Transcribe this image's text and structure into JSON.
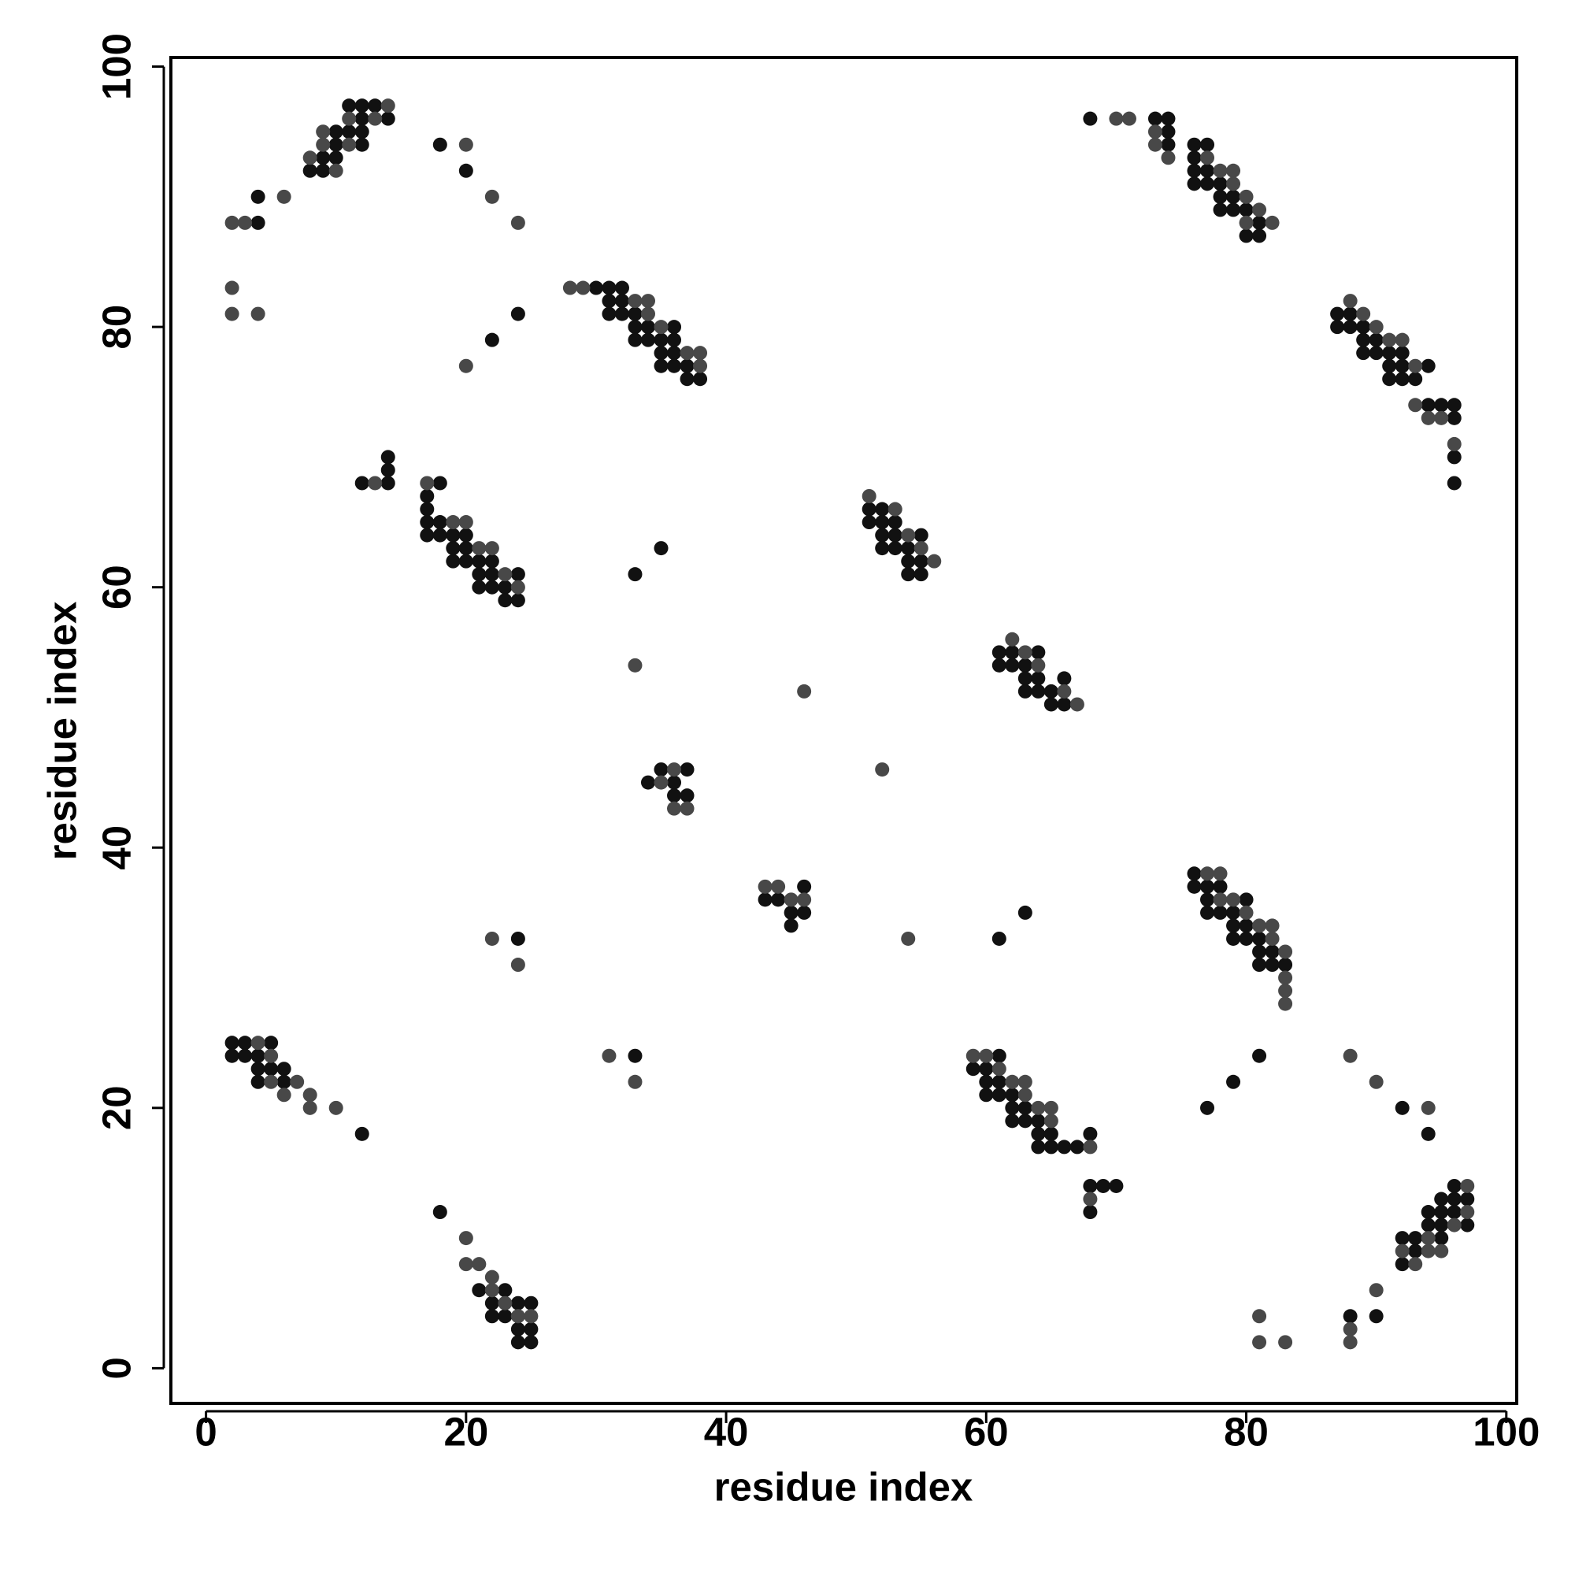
{
  "chart_data": {
    "type": "scatter",
    "x_label": "residue index",
    "y_label": "residue index",
    "xlim": [
      -2.7,
      100.8
    ],
    "ylim": [
      -2.7,
      100.7
    ],
    "xticks": [
      0,
      20,
      40,
      60,
      80,
      100
    ],
    "yticks": [
      0,
      20,
      40,
      60,
      80,
      100
    ],
    "grid": false,
    "series": [
      {
        "color": "#111111",
        "x": [
          11,
          12,
          13,
          12,
          14,
          10,
          11,
          12,
          10,
          12,
          18,
          9,
          10,
          8,
          9,
          20,
          4,
          4,
          24,
          22,
          30,
          31,
          32,
          31,
          32,
          31,
          32,
          33,
          33,
          34,
          36,
          33,
          34,
          35,
          36,
          35,
          36,
          35,
          36,
          37,
          37,
          38,
          68,
          73,
          74,
          74,
          74,
          76,
          77,
          76,
          76,
          77,
          76,
          77,
          78,
          78,
          79,
          78,
          79,
          80,
          81,
          80,
          81,
          87,
          88,
          87,
          88,
          89,
          89,
          90,
          89,
          90,
          91,
          92,
          91,
          92,
          94,
          91,
          92,
          93,
          94,
          95,
          96,
          96,
          96,
          96,
          14,
          14,
          12,
          14,
          18,
          17,
          17,
          17,
          18,
          17,
          18,
          19,
          20,
          19,
          20,
          19,
          20,
          21,
          22,
          21,
          22,
          24,
          21,
          22,
          23,
          23,
          24,
          33,
          35,
          51,
          52,
          51,
          52,
          53,
          52,
          53,
          55,
          52,
          53,
          54,
          54,
          55,
          54,
          55,
          61,
          62,
          64,
          61,
          62,
          63,
          63,
          64,
          66,
          63,
          64,
          65,
          65,
          66,
          35,
          37,
          34,
          36,
          36,
          37,
          46,
          43,
          44,
          45,
          46,
          45,
          61,
          63,
          76,
          76,
          77,
          78,
          77,
          80,
          77,
          78,
          79,
          79,
          80,
          79,
          80,
          81,
          81,
          82,
          81,
          82,
          83,
          24,
          2,
          3,
          5,
          2,
          3,
          4,
          4,
          5,
          6,
          4,
          6,
          12,
          33,
          61,
          59,
          60,
          60,
          61,
          60,
          61,
          62,
          62,
          63,
          62,
          63,
          64,
          64,
          65,
          68,
          64,
          65,
          66,
          67,
          68,
          69,
          70,
          68,
          81,
          79,
          77,
          92,
          94,
          18,
          21,
          23,
          22,
          24,
          25,
          22,
          23,
          24,
          25,
          24,
          25,
          96,
          95,
          96,
          97,
          94,
          95,
          96,
          94,
          95,
          97,
          92,
          93,
          95,
          93,
          92,
          88,
          90
        ],
        "y": [
          97,
          97,
          97,
          96,
          96,
          95,
          95,
          95,
          94,
          94,
          94,
          93,
          93,
          92,
          92,
          92,
          90,
          88,
          81,
          79,
          83,
          83,
          83,
          82,
          82,
          81,
          81,
          81,
          80,
          80,
          80,
          79,
          79,
          79,
          79,
          78,
          78,
          77,
          77,
          77,
          76,
          76,
          96,
          96,
          96,
          95,
          94,
          94,
          94,
          93,
          92,
          92,
          91,
          91,
          91,
          90,
          90,
          89,
          89,
          89,
          88,
          87,
          87,
          81,
          81,
          80,
          80,
          80,
          79,
          79,
          78,
          78,
          78,
          78,
          77,
          77,
          77,
          76,
          76,
          76,
          74,
          74,
          74,
          73,
          70,
          68,
          70,
          69,
          68,
          68,
          68,
          67,
          66,
          65,
          65,
          64,
          64,
          64,
          64,
          63,
          63,
          62,
          62,
          62,
          62,
          61,
          61,
          61,
          60,
          60,
          60,
          59,
          59,
          61,
          63,
          66,
          66,
          65,
          65,
          65,
          64,
          64,
          64,
          63,
          63,
          63,
          62,
          62,
          61,
          61,
          55,
          55,
          55,
          54,
          54,
          54,
          53,
          53,
          53,
          52,
          52,
          52,
          51,
          51,
          46,
          46,
          45,
          45,
          44,
          44,
          37,
          36,
          36,
          35,
          35,
          34,
          33,
          35,
          38,
          37,
          37,
          37,
          36,
          36,
          35,
          35,
          35,
          34,
          34,
          33,
          33,
          33,
          32,
          32,
          31,
          31,
          31,
          33,
          25,
          25,
          25,
          24,
          24,
          24,
          23,
          23,
          23,
          22,
          22,
          18,
          24,
          24,
          23,
          23,
          22,
          22,
          21,
          21,
          21,
          20,
          20,
          19,
          19,
          19,
          18,
          18,
          18,
          17,
          17,
          17,
          17,
          14,
          14,
          14,
          12,
          24,
          22,
          20,
          20,
          18,
          12,
          6,
          6,
          5,
          5,
          5,
          4,
          4,
          3,
          3,
          2,
          2,
          14,
          13,
          13,
          13,
          12,
          12,
          12,
          11,
          11,
          11,
          10,
          10,
          10,
          9,
          8,
          4,
          4
        ]
      },
      {
        "color": "#484848",
        "x": [
          14,
          11,
          13,
          9,
          9,
          11,
          20,
          8,
          10,
          6,
          22,
          2,
          3,
          24,
          2,
          2,
          4,
          20,
          28,
          29,
          33,
          34,
          34,
          35,
          37,
          38,
          38,
          70,
          71,
          73,
          73,
          74,
          77,
          78,
          79,
          79,
          80,
          81,
          80,
          82,
          88,
          89,
          90,
          91,
          92,
          93,
          93,
          94,
          95,
          96,
          13,
          17,
          19,
          20,
          21,
          22,
          23,
          24,
          51,
          53,
          54,
          55,
          56,
          62,
          63,
          64,
          66,
          67,
          33,
          46,
          36,
          35,
          36,
          37,
          52,
          43,
          44,
          45,
          46,
          54,
          77,
          78,
          78,
          79,
          80,
          81,
          82,
          82,
          83,
          83,
          83,
          83,
          22,
          24,
          4,
          5,
          5,
          7,
          6,
          8,
          8,
          10,
          31,
          33,
          59,
          60,
          61,
          62,
          63,
          63,
          64,
          65,
          65,
          68,
          68,
          88,
          90,
          94,
          20,
          20,
          21,
          22,
          22,
          23,
          24,
          25,
          97,
          97,
          96,
          94,
          92,
          94,
          95,
          93,
          90,
          88,
          88,
          81,
          81,
          83
        ],
        "y": [
          97,
          96,
          96,
          95,
          94,
          94,
          94,
          93,
          92,
          90,
          90,
          88,
          88,
          88,
          83,
          81,
          81,
          77,
          83,
          83,
          82,
          82,
          81,
          80,
          78,
          78,
          77,
          96,
          96,
          95,
          94,
          93,
          93,
          92,
          92,
          91,
          90,
          89,
          88,
          88,
          82,
          81,
          80,
          79,
          79,
          77,
          74,
          73,
          73,
          71,
          68,
          68,
          65,
          65,
          63,
          63,
          61,
          60,
          67,
          66,
          64,
          63,
          62,
          56,
          55,
          54,
          52,
          51,
          54,
          52,
          46,
          45,
          43,
          43,
          46,
          37,
          37,
          36,
          36,
          33,
          38,
          38,
          36,
          36,
          35,
          34,
          34,
          33,
          32,
          30,
          29,
          28,
          33,
          31,
          25,
          24,
          22,
          22,
          21,
          21,
          20,
          20,
          24,
          22,
          24,
          24,
          23,
          22,
          22,
          21,
          20,
          20,
          19,
          17,
          13,
          24,
          22,
          20,
          10,
          8,
          8,
          7,
          6,
          5,
          4,
          4,
          14,
          12,
          11,
          10,
          9,
          9,
          9,
          8,
          6,
          3,
          2,
          4,
          2,
          2
        ]
      }
    ]
  }
}
